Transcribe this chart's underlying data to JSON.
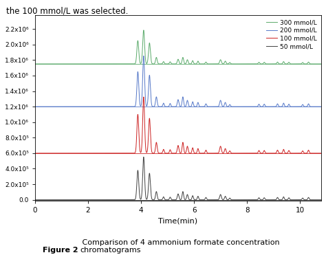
{
  "title_text": "the 100 mmol/L was selected.",
  "xlabel": "Time(min)",
  "xlim": [
    0,
    10.8
  ],
  "ylim": [
    -15000.0,
    2380000.0
  ],
  "yticks": [
    0.0,
    200000.0,
    400000.0,
    600000.0,
    800000.0,
    1000000.0,
    1200000.0,
    1400000.0,
    1600000.0,
    1800000.0,
    2000000.0,
    2200000.0
  ],
  "ytick_labels": [
    "0.0",
    "2.0x10⁵",
    "4.0x10⁵",
    "6.0x10⁵",
    "8.0x10⁵",
    "1.0x10⁶",
    "1.2x10⁶",
    "1.4x10⁶",
    "1.6x10⁶",
    "1.8x10⁶",
    "2.0x10⁶",
    "2.2x10⁶"
  ],
  "baselines": [
    1750000.0,
    1200000.0,
    600000.0,
    0.0
  ],
  "colors": [
    "#5aaa6a",
    "#5578c8",
    "#cc2222",
    "#404040"
  ],
  "labels": [
    "300 mmol/L",
    "200 mmol/L",
    "100 mmol/L",
    "50 mmol/L"
  ],
  "bg_color": "#ffffff",
  "linewidth": 0.7,
  "fig_width": 4.74,
  "fig_height": 3.71,
  "dpi": 100,
  "caption_bold": "Figure 2",
  "caption_normal": " Comparison of 4 ammonium formate concentration\nchromatograms"
}
